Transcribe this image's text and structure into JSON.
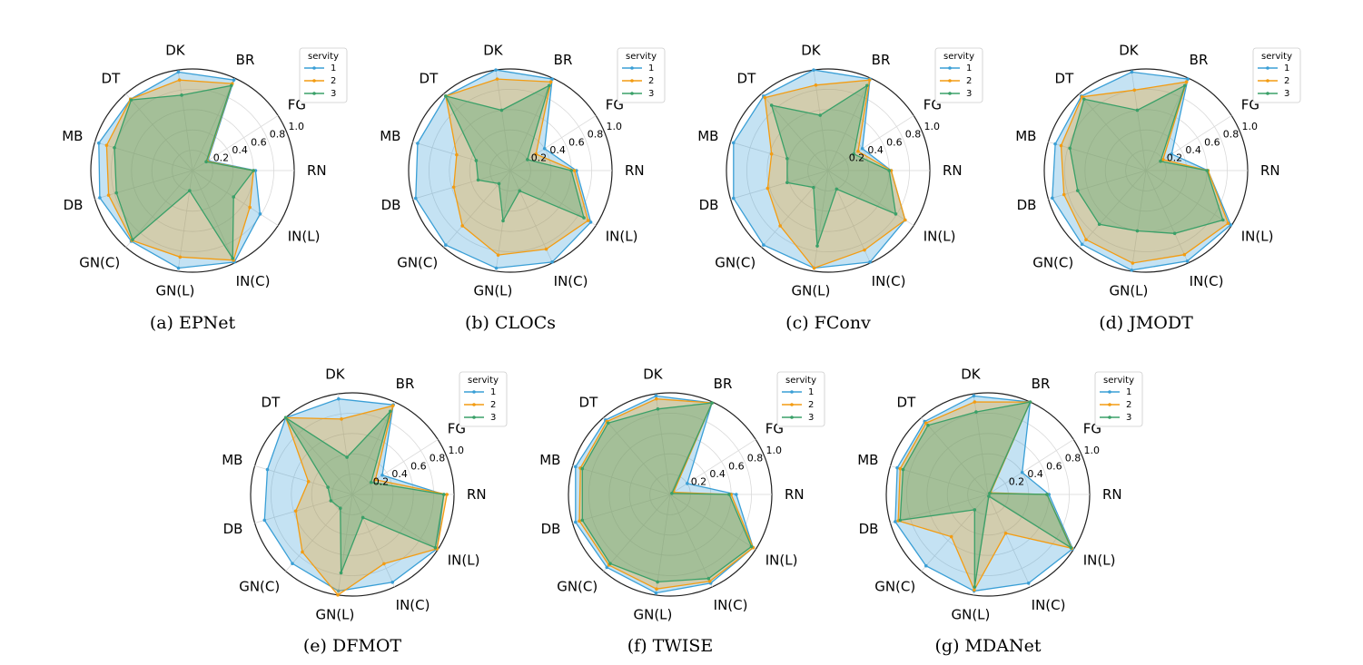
{
  "colors": {
    "1": "#3a9fd6",
    "2": "#f39c12",
    "3": "#3aa068",
    "grid": "#d9d9d9",
    "frame": "#222222"
  },
  "chart_data": [
    {
      "type": "radar",
      "caption": "(a)  EPNet",
      "axes": [
        "RN",
        "FG",
        "BR",
        "DK",
        "DT",
        "MB",
        "DB",
        "GN(C)",
        "GN(L)",
        "IN(C)",
        "IN(L)"
      ],
      "r_ticks": [
        "0.2",
        "0.4",
        "0.6",
        "0.8",
        "1.0"
      ],
      "rlim": [
        0,
        1
      ],
      "legend_title": "servity",
      "series": [
        {
          "name": "1",
          "values": [
            0.62,
            0.18,
            0.98,
            0.98,
            0.93,
            0.96,
            0.95,
            0.92,
            0.97,
            0.99,
            0.79
          ]
        },
        {
          "name": "2",
          "values": [
            0.6,
            0.17,
            0.94,
            0.9,
            0.93,
            0.88,
            0.86,
            0.91,
            0.86,
            0.97,
            0.67
          ]
        },
        {
          "name": "3",
          "values": [
            0.6,
            0.16,
            0.92,
            0.75,
            0.92,
            0.8,
            0.78,
            0.9,
            0.2,
            0.95,
            0.48
          ]
        }
      ]
    },
    {
      "type": "radar",
      "caption": "(b)  CLOCs",
      "axes": [
        "RN",
        "FG",
        "BR",
        "DK",
        "DT",
        "MB",
        "DB",
        "GN(C)",
        "GN(L)",
        "IN(C)",
        "IN(L)"
      ],
      "r_ticks": [
        "0.2",
        "0.4",
        "0.6",
        "0.8",
        "1.0"
      ],
      "rlim": [
        0,
        1
      ],
      "legend_title": "servity",
      "series": [
        {
          "name": "1",
          "values": [
            0.65,
            0.4,
            0.99,
            1.0,
            0.97,
            0.95,
            0.97,
            0.97,
            0.97,
            0.99,
            0.94
          ]
        },
        {
          "name": "2",
          "values": [
            0.63,
            0.3,
            0.96,
            0.91,
            0.97,
            0.55,
            0.58,
            0.72,
            0.84,
            0.85,
            0.91
          ]
        },
        {
          "name": "3",
          "values": [
            0.6,
            0.2,
            0.92,
            0.6,
            0.97,
            0.35,
            0.33,
            0.17,
            0.5,
            0.22,
            0.86
          ]
        }
      ]
    },
    {
      "type": "radar",
      "caption": "(c)  FConv",
      "axes": [
        "RN",
        "FG",
        "BR",
        "DK",
        "DT",
        "MB",
        "DB",
        "GN(C)",
        "GN(L)",
        "IN(C)",
        "IN(L)"
      ],
      "r_ticks": [
        "0.2",
        "0.4",
        "0.6",
        "0.8",
        "1.0"
      ],
      "rlim": [
        0,
        1
      ],
      "legend_title": "servity",
      "series": [
        {
          "name": "1",
          "values": [
            0.62,
            0.4,
            0.99,
            1.0,
            0.97,
            0.97,
            0.97,
            0.97,
            0.97,
            0.99,
            0.9
          ]
        },
        {
          "name": "2",
          "values": [
            0.62,
            0.35,
            0.98,
            0.85,
            0.95,
            0.58,
            0.62,
            0.72,
            0.97,
            0.86,
            0.9
          ]
        },
        {
          "name": "3",
          "values": [
            0.6,
            0.3,
            0.92,
            0.55,
            0.85,
            0.42,
            0.42,
            0.22,
            0.75,
            0.2,
            0.79
          ]
        }
      ]
    },
    {
      "type": "radar",
      "caption": "(d)  JMODT",
      "axes": [
        "RN",
        "FG",
        "BR",
        "DK",
        "DT",
        "MB",
        "DB",
        "GN(C)",
        "GN(L)",
        "IN(C)",
        "IN(L)"
      ],
      "r_ticks": [
        "0.2",
        "0.4",
        "0.6",
        "0.8",
        "1.0"
      ],
      "rlim": [
        0,
        1
      ],
      "legend_title": "servity",
      "series": [
        {
          "name": "1",
          "values": [
            0.61,
            0.3,
            0.99,
            0.98,
            0.97,
            0.93,
            0.96,
            0.96,
            0.99,
            0.98,
            0.99
          ]
        },
        {
          "name": "2",
          "values": [
            0.61,
            0.2,
            0.96,
            0.8,
            0.96,
            0.87,
            0.84,
            0.9,
            0.92,
            0.91,
            0.96
          ]
        },
        {
          "name": "3",
          "values": [
            0.6,
            0.17,
            0.92,
            0.6,
            0.93,
            0.78,
            0.7,
            0.7,
            0.6,
            0.68,
            0.9
          ]
        }
      ]
    },
    {
      "type": "radar",
      "caption": "(e)  DFMOT",
      "axes": [
        "RN",
        "FG",
        "BR",
        "DK",
        "DT",
        "MB",
        "DB",
        "GN(C)",
        "GN(L)",
        "IN(C)",
        "IN(L)"
      ],
      "r_ticks": [
        "0.2",
        "0.4",
        "0.6",
        "0.8",
        "1.0"
      ],
      "rlim": [
        0,
        1
      ],
      "legend_title": "servity",
      "series": [
        {
          "name": "1",
          "values": [
            0.9,
            0.35,
            0.97,
            0.95,
            1.0,
            0.87,
            0.9,
            0.9,
            0.96,
            0.95,
            0.99
          ]
        },
        {
          "name": "2",
          "values": [
            0.93,
            0.27,
            0.96,
            0.75,
            1.0,
            0.45,
            0.58,
            0.75,
            1.0,
            0.75,
            0.99
          ]
        },
        {
          "name": "3",
          "values": [
            0.9,
            0.22,
            0.9,
            0.37,
            1.0,
            0.25,
            0.22,
            0.18,
            0.78,
            0.25,
            0.97
          ]
        }
      ]
    },
    {
      "type": "radar",
      "caption": "(f)  TWISE",
      "axes": [
        "RN",
        "FG",
        "BR",
        "DK",
        "DT",
        "MB",
        "DB",
        "GN(C)",
        "GN(L)",
        "IN(C)",
        "IN(L)"
      ],
      "r_ticks": [
        "0.2",
        "0.4",
        "0.6",
        "0.8",
        "1.0"
      ],
      "rlim": [
        0,
        1
      ],
      "legend_title": "servity",
      "series": [
        {
          "name": "1",
          "values": [
            0.65,
            0.2,
            0.99,
            0.98,
            0.97,
            0.97,
            0.97,
            0.95,
            0.98,
            0.96,
            0.97
          ]
        },
        {
          "name": "2",
          "values": [
            0.6,
            0.04,
            0.99,
            0.95,
            0.95,
            0.92,
            0.93,
            0.92,
            0.94,
            0.94,
            0.97
          ]
        },
        {
          "name": "3",
          "values": [
            0.58,
            0.02,
            0.99,
            0.85,
            0.93,
            0.9,
            0.9,
            0.9,
            0.87,
            0.91,
            0.95
          ]
        }
      ]
    },
    {
      "type": "radar",
      "caption": "(g)  MDANet",
      "axes": [
        "RN",
        "FG",
        "BR",
        "DK",
        "DT",
        "MB",
        "DB",
        "GN(C)",
        "GN(L)",
        "IN(C)",
        "IN(L)"
      ],
      "r_ticks": [
        "0.2",
        "0.4",
        "0.6",
        "0.8",
        "1.0"
      ],
      "rlim": [
        0,
        1
      ],
      "legend_title": "servity",
      "series": [
        {
          "name": "1",
          "values": [
            0.6,
            0.4,
            1.0,
            0.98,
            0.95,
            0.93,
            0.95,
            0.93,
            0.96,
            0.96,
            0.99
          ]
        },
        {
          "name": "2",
          "values": [
            0.58,
            0.03,
            1.0,
            0.92,
            0.93,
            0.9,
            0.92,
            0.55,
            0.95,
            0.42,
            0.98
          ]
        },
        {
          "name": "3",
          "values": [
            0.58,
            0.02,
            1.0,
            0.82,
            0.9,
            0.87,
            0.9,
            0.2,
            0.92,
            0.02,
            0.97
          ]
        }
      ]
    }
  ]
}
